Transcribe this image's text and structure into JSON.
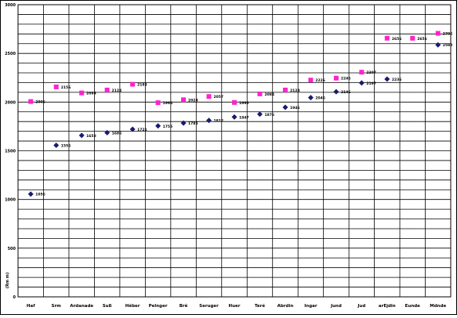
{
  "chart_data": {
    "type": "scatter",
    "title": "",
    "xlabel": "",
    "ylabel": "(Rm m)",
    "ylim": [
      0,
      3000
    ],
    "yticks": [
      0,
      500,
      1000,
      1500,
      2000,
      2500,
      3000
    ],
    "ytick_labels": [
      "0",
      "500",
      "1000",
      "1500",
      "2000",
      "2500",
      "3000"
    ],
    "grid": true,
    "categories": [
      "Haf",
      "Srm",
      "Ardanade",
      "Suß",
      "Hêber",
      "Pelnger",
      "Brê",
      "Seruger",
      "Huer",
      "Teré",
      "Abrdin",
      "Ingar",
      "Jund",
      "Jud",
      "arEjdin",
      "Eunde",
      "Mdnde"
    ],
    "series": [
      {
        "marker": "diamond",
        "color": "#1a1a6e",
        "values": [
          1056,
          1556,
          1658,
          1686,
          1721,
          1755,
          1785,
          1812,
          1847,
          1876,
          1946,
          2046,
          2106,
          2197,
          2236,
          null,
          2588
        ],
        "labels": [
          "1056",
          "1556",
          "1658",
          "1686",
          "1721",
          "1755",
          "1785",
          "1812",
          "1847",
          "1876",
          "1946",
          "2046",
          "2106",
          "2197",
          "2236",
          "",
          "2588"
        ]
      },
      {
        "marker": "square",
        "color": "#ff22cc",
        "values": [
          2006,
          2156,
          2094,
          2124,
          2183,
          1994,
          2024,
          2057,
          1996,
          2084,
          2124,
          2226,
          2246,
          2307,
          2656,
          2656,
          2706
        ],
        "labels": [
          "2006",
          "2156",
          "2094",
          "2124",
          "2183",
          "1994",
          "2024",
          "2057",
          "1996",
          "2084",
          "2124",
          "2226",
          "2246",
          "2307",
          "2656",
          "2656",
          "2706"
        ]
      }
    ]
  }
}
